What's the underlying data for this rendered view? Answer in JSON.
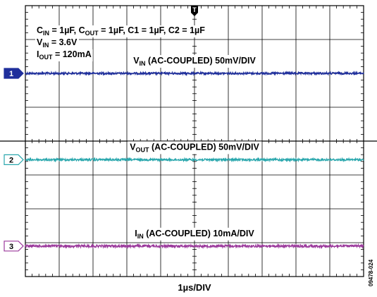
{
  "chart_data": {
    "type": "line",
    "title": "",
    "xlabel": "1µs/DIV",
    "ylabel": "",
    "x_divisions": 10,
    "y_divisions": 8,
    "xlim": [
      0,
      10
    ],
    "x_unit": "µs",
    "grid": true,
    "trigger_marker": "T",
    "figure_id": "09478-024",
    "conditions": {
      "line1": {
        "parts": [
          {
            "t": "C",
            "sub": "IN",
            "after": " = 1µF, "
          },
          {
            "t": "C",
            "sub": "OUT",
            "after": " = 1µF, C1 = 1µF, C2 = 1µF"
          }
        ]
      },
      "line2": {
        "parts": [
          {
            "t": "V",
            "sub": "IN",
            "after": " = 3.6V"
          }
        ]
      },
      "line3": {
        "parts": [
          {
            "t": "I",
            "sub": "OUT",
            "after": " = 120mA"
          }
        ]
      }
    },
    "series": [
      {
        "channel": "1",
        "label_main": "V",
        "label_sub": "IN",
        "label_rest": " (AC-COUPLED) 50mV/DIV",
        "color": "#1f2f9c",
        "marker_style": "filled",
        "level_div": 6.0,
        "noise_div": 0.03,
        "mean_deviation": 0
      },
      {
        "channel": "2",
        "label_main": "V",
        "label_sub": "OUT",
        "label_rest": " (AC-COUPLED) 50mV/DIV",
        "color": "#2aa7ad",
        "marker_style": "outline",
        "level_div": 3.45,
        "noise_div": 0.03,
        "mean_deviation": 0
      },
      {
        "channel": "3",
        "label_main": "I",
        "label_sub": "IN",
        "label_rest": " (AC-COUPLED) 10mA/DIV",
        "color": "#9b3a9c",
        "marker_style": "outline",
        "level_div": 0.9,
        "noise_div": 0.035,
        "mean_deviation": 0
      }
    ]
  }
}
